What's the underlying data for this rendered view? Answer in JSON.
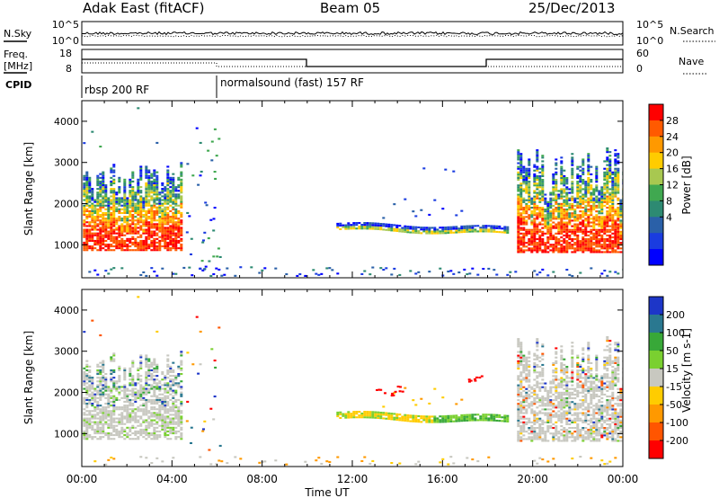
{
  "header": {
    "title": "Adak East (fitACF)",
    "beam": "Beam 05",
    "date": "25/Dec/2013"
  },
  "noise_panel": {
    "left_label": "N.Sky",
    "right_label": "N.Search",
    "left_ticks": [
      "10^5",
      "10^0"
    ],
    "right_ticks": [
      "10^5",
      "10^0"
    ]
  },
  "freq_panel": {
    "left_label_1": "Freq.",
    "left_label_2": "[MHz]",
    "left_ticks": [
      "18",
      "8"
    ],
    "right_label": "Nave",
    "right_ticks": [
      "60",
      "0"
    ]
  },
  "cpid_panel": {
    "label": "CPID",
    "modes": [
      {
        "start_hour": 0,
        "name": "rbsp 200 RF"
      },
      {
        "start_hour": 6,
        "name": "normalsound (fast) 157 RF"
      }
    ]
  },
  "chart_data": [
    {
      "type": "heatmap",
      "name": "power",
      "ylabel": "Slant Range [km]",
      "xlabel": "Time UT",
      "xlim": [
        0,
        24
      ],
      "ylim": [
        200,
        4500
      ],
      "x_ticks": [
        "00:00",
        "04:00",
        "08:00",
        "12:00",
        "16:00",
        "20:00",
        "00:00"
      ],
      "y_ticks": [
        1000,
        2000,
        3000,
        4000
      ],
      "colorbar": {
        "label": "Power [dB]",
        "ticks": [
          "28",
          "24",
          "20",
          "16",
          "12",
          "8",
          "4"
        ],
        "colors": [
          "#ff0000",
          "#ff5a00",
          "#ff9900",
          "#ffcc00",
          "#a8c850",
          "#40a850",
          "#2d8a72",
          "#2a60a8",
          "#1a3ce0",
          "#0000ff"
        ]
      }
    },
    {
      "type": "heatmap",
      "name": "velocity",
      "ylabel": "Slant Range [km]",
      "xlabel": "Time UT",
      "xlim": [
        0,
        24
      ],
      "ylim": [
        200,
        4500
      ],
      "x_ticks": [
        "00:00",
        "04:00",
        "08:00",
        "12:00",
        "16:00",
        "20:00",
        "00:00"
      ],
      "y_ticks": [
        1000,
        2000,
        3000,
        4000
      ],
      "colorbar": {
        "label": "Velocity [m s-1]",
        "ticks": [
          "200",
          "100",
          "50",
          "15",
          "-15",
          "-50",
          "-100",
          "-200"
        ],
        "colors": [
          "#1d36c8",
          "#2a7890",
          "#38a838",
          "#7ad030",
          "#c8c8c0",
          "#ffcc00",
          "#ff9900",
          "#ff5500",
          "#ff0000"
        ]
      }
    }
  ]
}
